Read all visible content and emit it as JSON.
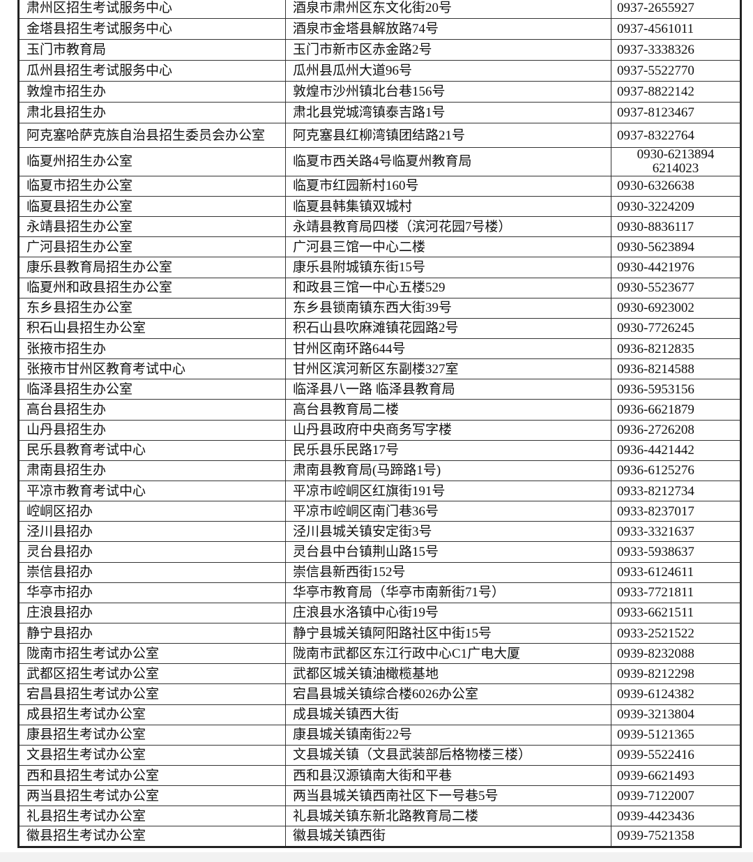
{
  "table": {
    "rows": [
      [
        "肃州区招生考试服务中心",
        "酒泉市肃州区东文化街20号",
        "0937-2655927"
      ],
      [
        "金塔县招生考试服务中心",
        "酒泉市金塔县解放路74号",
        "0937-4561011"
      ],
      [
        "玉门市教育局",
        "玉门市新市区赤金路2号",
        "0937-3338326"
      ],
      [
        "瓜州县招生考试服务中心",
        "瓜州县瓜州大道96号",
        "0937-5522770"
      ],
      [
        "敦煌市招生办",
        "敦煌市沙州镇北台巷156号",
        "0937-8822142"
      ],
      [
        "肃北县招生办",
        "肃北县党城湾镇泰吉路1号",
        "0937-8123467"
      ],
      [
        "阿克塞哈萨克族自治县招生委员会办公室",
        "阿克塞县红柳湾镇团结路21号",
        "0937-8322764"
      ],
      [
        "临夏州招生办公室",
        "临夏市西关路4号临夏州教育局",
        [
          "0930-6213894",
          "6214023"
        ]
      ],
      [
        "临夏市招生办公室",
        "临夏市红园新村160号",
        "0930-6326638"
      ],
      [
        "临夏县招生办公室",
        "临夏县韩集镇双城村",
        "0930-3224209"
      ],
      [
        "永靖县招生办公室",
        "永靖县教育局四楼（滨河花园7号楼）",
        "0930-8836117"
      ],
      [
        "广河县招生办公室",
        "广河县三馆一中心二楼",
        "0930-5623894"
      ],
      [
        "康乐县教育局招生办公室",
        "康乐县附城镇东街15号",
        "0930-4421976"
      ],
      [
        "临夏州和政县招生办公室",
        "和政县三馆一中心五楼529",
        "0930-5523677"
      ],
      [
        "东乡县招生办公室",
        "东乡县锁南镇东西大街39号",
        "0930-6923002"
      ],
      [
        "积石山县招生办公室",
        "积石山县吹麻滩镇花园路2号",
        "0930-7726245"
      ],
      [
        "张掖市招生办",
        "甘州区南环路644号",
        "0936-8212835"
      ],
      [
        "张掖市甘州区教育考试中心",
        "甘州区滨河新区东副楼327室",
        "0936-8214588"
      ],
      [
        "临泽县招生办公室",
        "临泽县八一路  临泽县教育局",
        "0936-5953156"
      ],
      [
        "高台县招生办",
        "高台县教育局二楼",
        "0936-6621879"
      ],
      [
        "山丹县招生办",
        "山丹县政府中央商务写字楼",
        "0936-2726208"
      ],
      [
        "民乐县教育考试中心",
        "民乐县乐民路17号",
        "0936-4421442"
      ],
      [
        "肃南县招生办",
        "肃南县教育局(马蹄路1号)",
        "0936-6125276"
      ],
      [
        "平凉市教育考试中心",
        "平凉市崆峒区红旗街191号",
        "0933-8212734"
      ],
      [
        "崆峒区招办",
        "平凉市崆峒区南门巷36号",
        "0933-8237017"
      ],
      [
        "泾川县招办",
        "泾川县城关镇安定街3号",
        "0933-3321637"
      ],
      [
        "灵台县招办",
        "灵台县中台镇荆山路15号",
        "0933-5938637"
      ],
      [
        "崇信县招办",
        "崇信县新西街152号",
        "0933-6124611"
      ],
      [
        "华亭市招办",
        "华亭市教育局（华亭市南新街71号）",
        "0933-7721811"
      ],
      [
        "庄浪县招办",
        "庄浪县水洛镇中心街19号",
        "0933-6621511"
      ],
      [
        "静宁县招办",
        "静宁县城关镇阿阳路社区中街15号",
        "0933-2521522"
      ],
      [
        "陇南市招生考试办公室",
        "陇南市武都区东江行政中心C1广电大厦",
        "0939-8232088"
      ],
      [
        "武都区招生考试办公室",
        "武都区城关镇油橄榄基地",
        "0939-8212298"
      ],
      [
        "宕昌县招生考试办公室",
        "宕昌县城关镇综合楼6026办公室",
        "0939-6124382"
      ],
      [
        "成县招生考试办公室",
        "成县城关镇西大街",
        "0939-3213804"
      ],
      [
        "康县招生考试办公室",
        "康县城关镇南街22号",
        "0939-5121365"
      ],
      [
        "文县招生考试办公室",
        "文县城关镇（文县武装部后格物楼三楼）",
        "0939-5522416"
      ],
      [
        "西和县招生考试办公室",
        "西和县汉源镇南大街和平巷",
        "0939-6621493"
      ],
      [
        "两当县招生考试办公室",
        "两当县城关镇西南社区下一号巷5号",
        "0939-7122007"
      ],
      [
        "礼县招生考试办公室",
        "礼县城关镇东新北路教育局二楼",
        "0939-4423436"
      ],
      [
        "徽县招生考试办公室",
        "徽县城关镇西街",
        "0939-7521358"
      ]
    ]
  }
}
